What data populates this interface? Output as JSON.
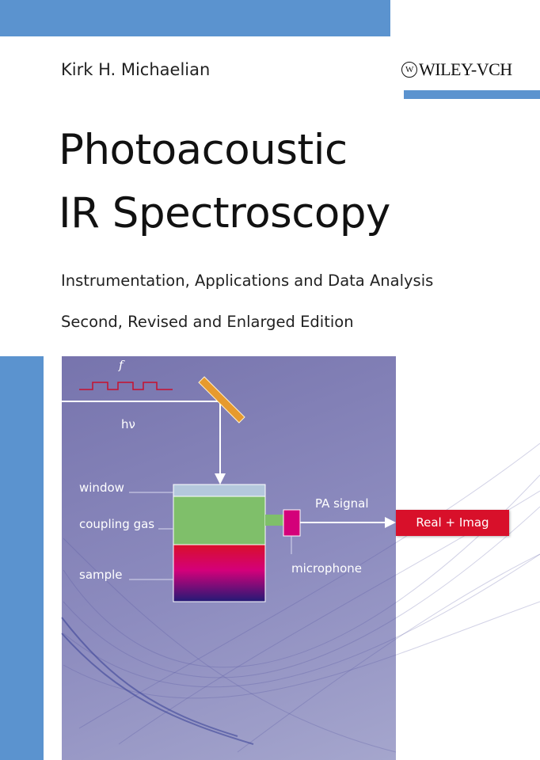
{
  "cover": {
    "author": "Kirk H. Michaelian",
    "publisher": "WILEY-VCH",
    "title_line1": "Photoacoustic",
    "title_line2": "IR Spectroscopy",
    "subtitle": "Instrumentation, Applications and Data Analysis",
    "edition": "Second, Revised and Enlarged Edition"
  },
  "diagram": {
    "frequency_symbol": "f",
    "photon_symbol": "hν",
    "labels": {
      "window": "window",
      "coupling_gas": "coupling gas",
      "sample": "sample",
      "pa_signal": "PA signal",
      "microphone": "microphone",
      "output": "Real + Imag"
    }
  },
  "colors": {
    "accent_blue": "#5b93cf",
    "panel_purple": "#7f7db5",
    "window": "#b4c8dc",
    "coupling_gas": "#7fbf6a",
    "microphone": "#d4007a",
    "output_red": "#d8102a",
    "wave_red": "#c8102e",
    "mirror": "#e69a2e"
  }
}
